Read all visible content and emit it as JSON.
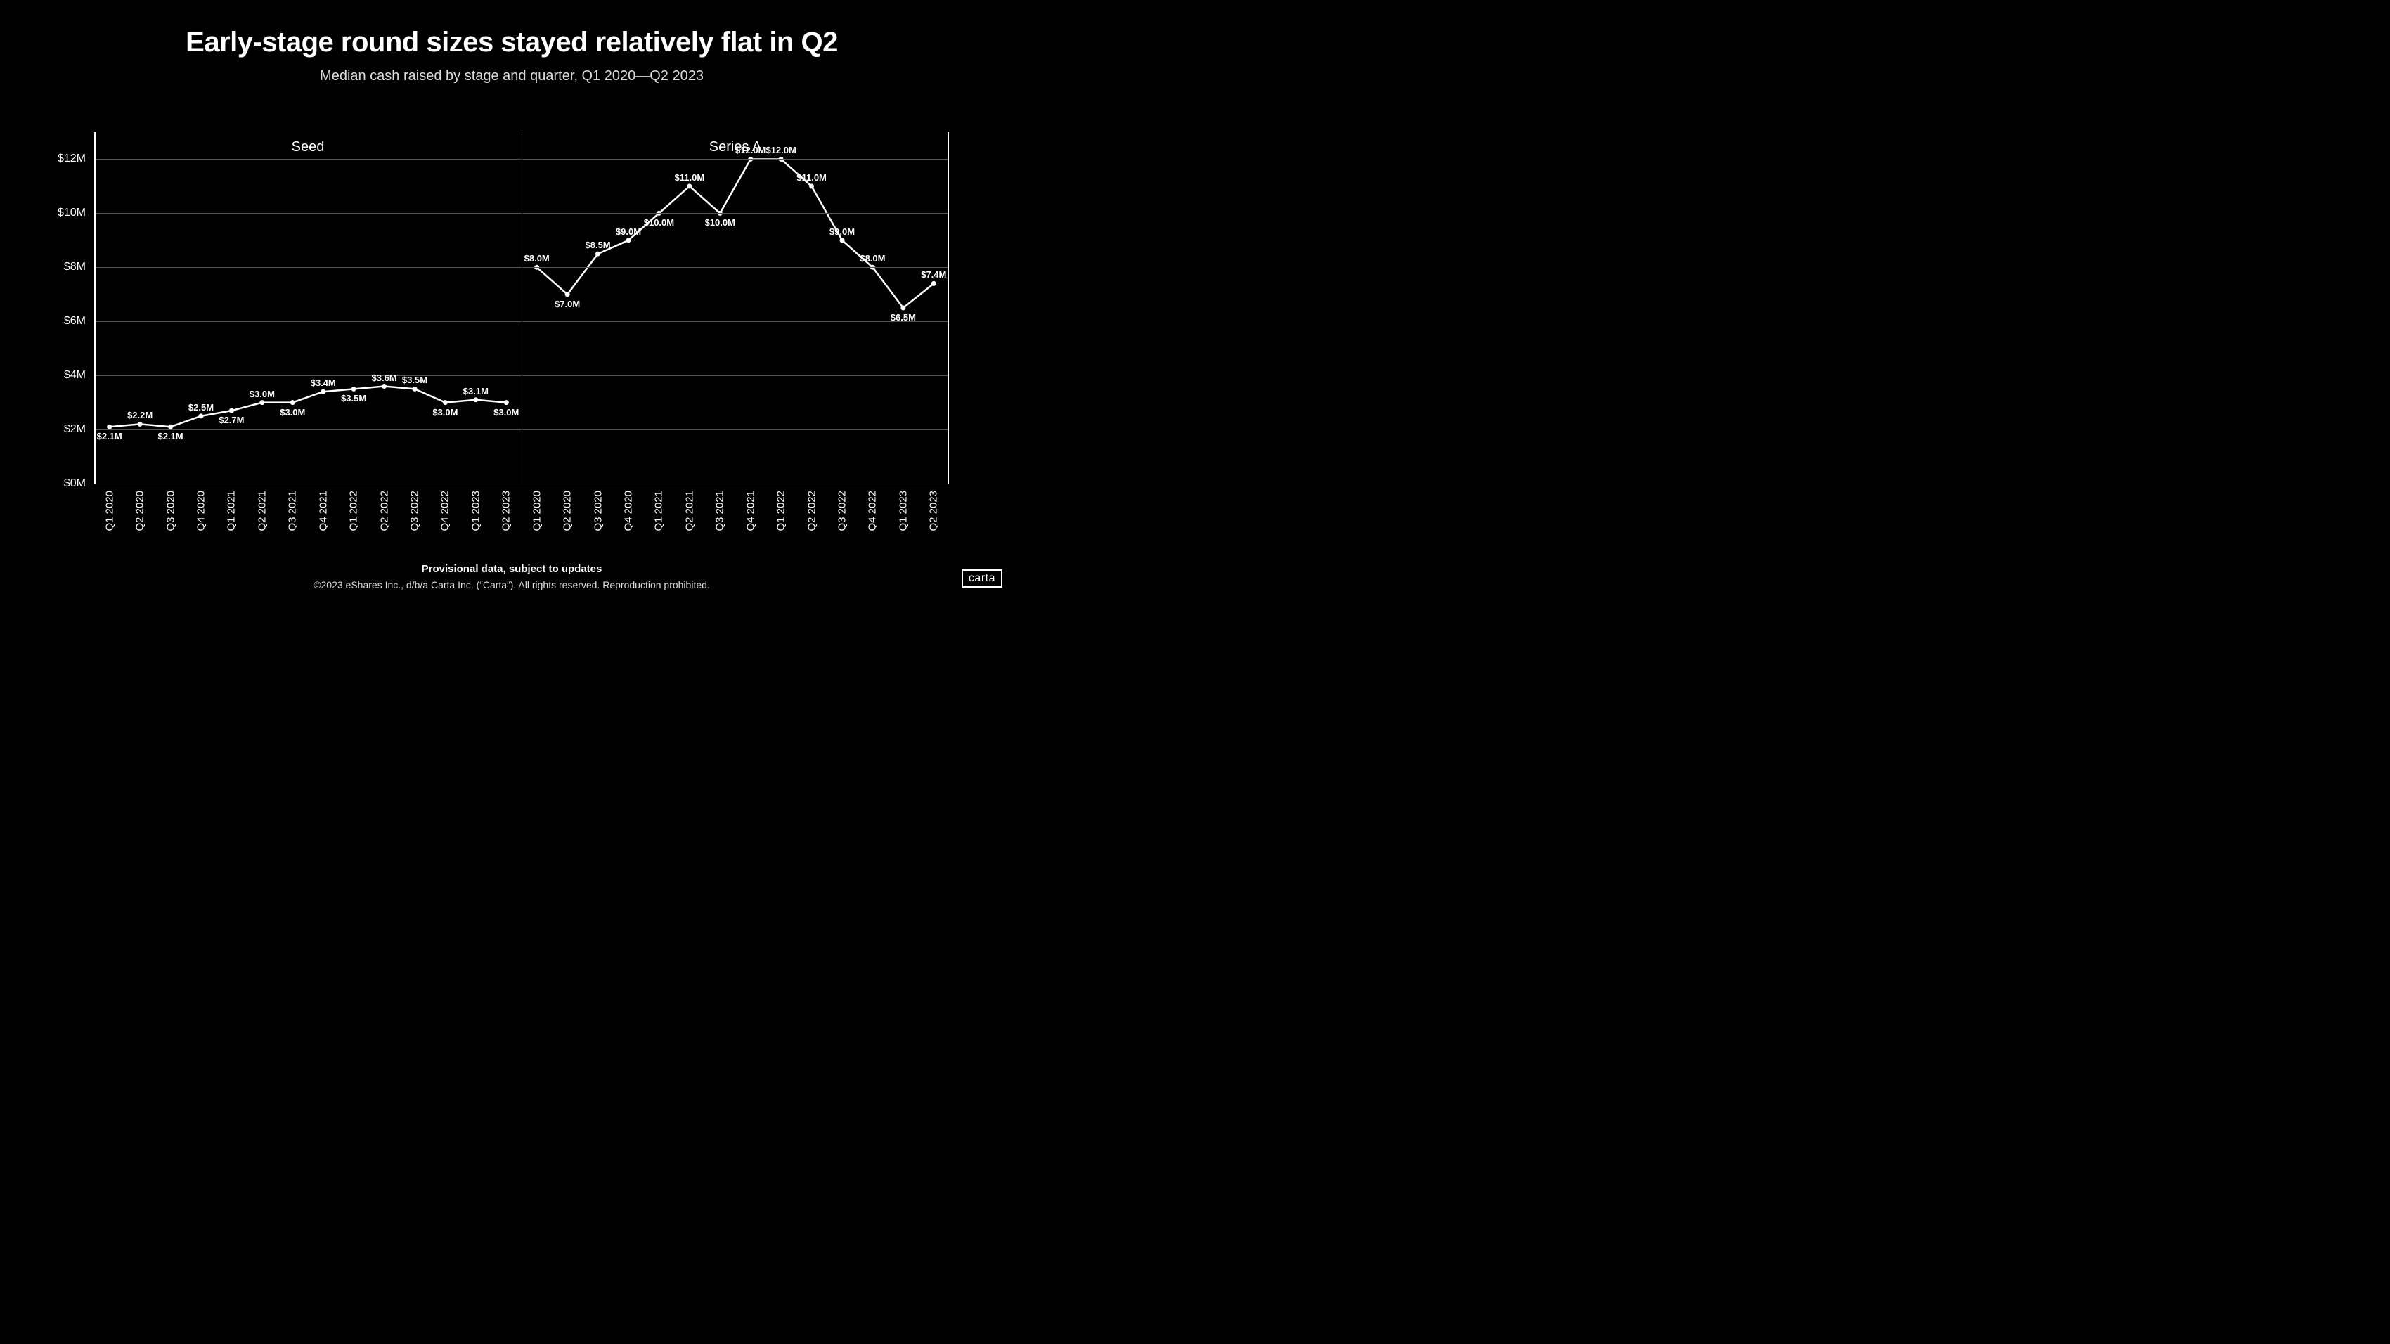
{
  "title": "Early-stage round sizes stayed relatively flat in Q2",
  "subtitle": "Median cash raised by stage and quarter, Q1 2020—Q2 2023",
  "footer_bold": "Provisional data, subject to updates",
  "footer_light": "©2023 eShares Inc., d/b/a Carta Inc. (“Carta”). All rights reserved. Reproduction prohibited.",
  "logo": "carta",
  "chart": {
    "type": "line",
    "background_color": "#000000",
    "line_color": "#ffffff",
    "marker_color": "#ffffff",
    "grid_color": "#555555",
    "text_color": "#ffffff",
    "line_width": 2.5,
    "marker_radius": 3.5,
    "ylim": [
      0,
      13
    ],
    "yticks": [
      0,
      2,
      4,
      6,
      8,
      10,
      12
    ],
    "ytick_labels": [
      "$0M",
      "$2M",
      "$4M",
      "$6M",
      "$8M",
      "$10M",
      "$12M"
    ],
    "ylabel_fontsize": 16,
    "xlabel_fontsize": 15,
    "panel_title_fontsize": 20,
    "data_label_fontsize": 13,
    "categories": [
      "Q1 2020",
      "Q2 2020",
      "Q3 2020",
      "Q4 2020",
      "Q1 2021",
      "Q2 2021",
      "Q3 2021",
      "Q4 2021",
      "Q1 2022",
      "Q2 2022",
      "Q3 2022",
      "Q4 2022",
      "Q1 2023",
      "Q2 2023"
    ],
    "panels": [
      {
        "title": "Seed",
        "values": [
          2.1,
          2.2,
          2.1,
          2.5,
          2.7,
          3.0,
          3.0,
          3.4,
          3.5,
          3.6,
          3.5,
          3.0,
          3.1,
          3.0
        ],
        "labels": [
          "$2.1M",
          "$2.2M",
          "$2.1M",
          "$2.5M",
          "$2.7M",
          "$3.0M",
          "$3.0M",
          "$3.4M",
          "$3.5M",
          "$3.6M",
          "$3.5M",
          "$3.0M",
          "$3.1M",
          "$3.0M"
        ],
        "label_pos": [
          "below",
          "above",
          "below",
          "above",
          "below",
          "above",
          "below",
          "above",
          "below",
          "above",
          "above",
          "below",
          "above",
          "below"
        ]
      },
      {
        "title": "Series A",
        "values": [
          8.0,
          7.0,
          8.5,
          9.0,
          10.0,
          11.0,
          10.0,
          12.0,
          12.0,
          11.0,
          9.0,
          8.0,
          6.5,
          7.4
        ],
        "labels": [
          "$8.0M",
          "$7.0M",
          "$8.5M",
          "$9.0M",
          "$10.0M",
          "$11.0M",
          "$10.0M",
          "$12.0M",
          "$12.0M",
          "$11.0M",
          "$9.0M",
          "$8.0M",
          "$6.5M",
          "$7.4M"
        ],
        "label_pos": [
          "above",
          "below",
          "above",
          "above",
          "below",
          "above",
          "below",
          "above",
          "above",
          "above",
          "above",
          "above",
          "below",
          "above"
        ]
      }
    ]
  }
}
